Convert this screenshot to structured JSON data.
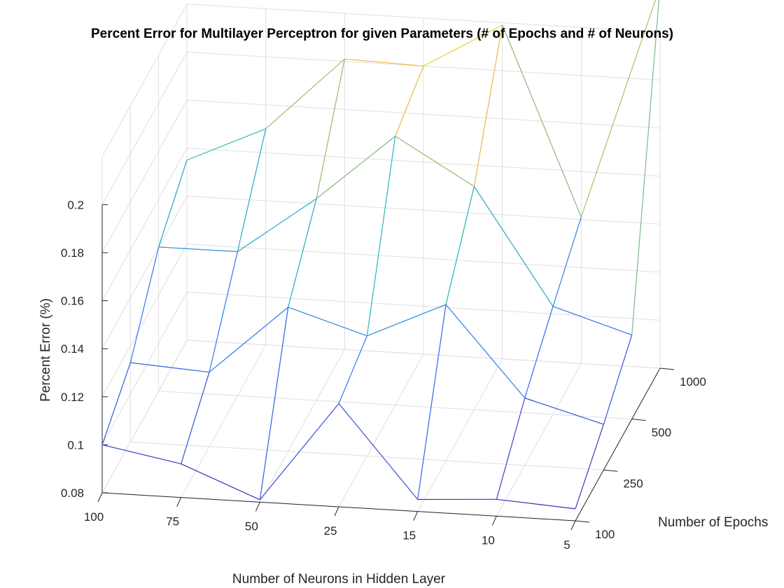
{
  "chart_data": {
    "type": "surface-mesh-3d",
    "title": "Percent Error for Multilayer Perceptron for given Parameters (# of Epochs and # of Neurons)",
    "xlabel": "Number of Neurons in Hidden Layer",
    "ylabel": "Number of Epochs",
    "zlabel": "Percent Error (%)",
    "x_ticks": [
      "100",
      "75",
      "50",
      "25",
      "15",
      "10",
      "5"
    ],
    "y_ticks": [
      "100",
      "250",
      "500",
      "1000"
    ],
    "z_ticks": [
      "0.08",
      "0.1",
      "0.12",
      "0.14",
      "0.16",
      "0.18",
      "0.2"
    ],
    "zlim": [
      0.08,
      0.22
    ],
    "grid": true,
    "colormap": "parula",
    "z_values": [
      [
        0.1,
        0.094,
        0.081,
        0.123,
        0.085,
        0.087,
        0.085
      ],
      [
        0.113,
        0.111,
        0.14,
        0.13,
        0.145,
        0.108,
        0.099
      ],
      [
        0.14,
        0.14,
        0.164,
        0.192,
        0.173,
        0.125,
        0.115
      ],
      [
        0.155,
        0.17,
        0.201,
        0.2,
        0.219,
        0.141,
        0.239
      ]
    ]
  }
}
